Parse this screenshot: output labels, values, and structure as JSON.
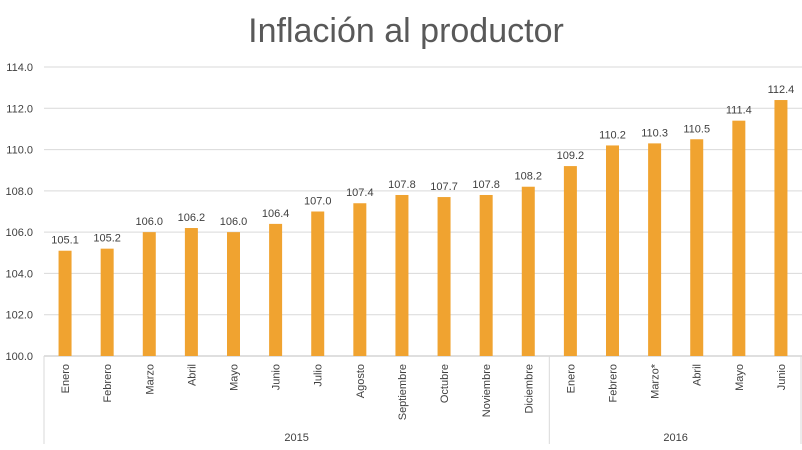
{
  "chart_data": {
    "type": "bar",
    "title": "Inflación al productor",
    "xlabel": "",
    "ylabel": "",
    "ylim": [
      100.0,
      114.0
    ],
    "y_ticks": [
      "100.0",
      "102.0",
      "104.0",
      "106.0",
      "108.0",
      "110.0",
      "112.0",
      "114.0"
    ],
    "grid": true,
    "legend": "none",
    "bar_color": "#F0A330",
    "categories": [
      "Enero",
      "Febrero",
      "Marzo",
      "Abril",
      "Mayo",
      "Junio",
      "Julio",
      "Agosto",
      "Septiembre",
      "Octubre",
      "Noviembre",
      "Diciembre",
      "Enero",
      "Febrero",
      "Marzo*",
      "Abril",
      "Mayo",
      "Junio"
    ],
    "values": [
      105.1,
      105.2,
      106.0,
      106.2,
      106.0,
      106.4,
      107.0,
      107.4,
      107.8,
      107.7,
      107.8,
      108.2,
      109.2,
      110.2,
      110.3,
      110.5,
      111.4,
      112.4
    ],
    "data_labels": [
      "105.1",
      "105.2",
      "106.0",
      "106.2",
      "106.0",
      "106.4",
      "107.0",
      "107.4",
      "107.8",
      "107.7",
      "107.8",
      "108.2",
      "109.2",
      "110.2",
      "110.3",
      "110.5",
      "111.4",
      "112.4"
    ],
    "groups": [
      {
        "label": "2015",
        "count": 12
      },
      {
        "label": "2016",
        "count": 6
      }
    ]
  }
}
